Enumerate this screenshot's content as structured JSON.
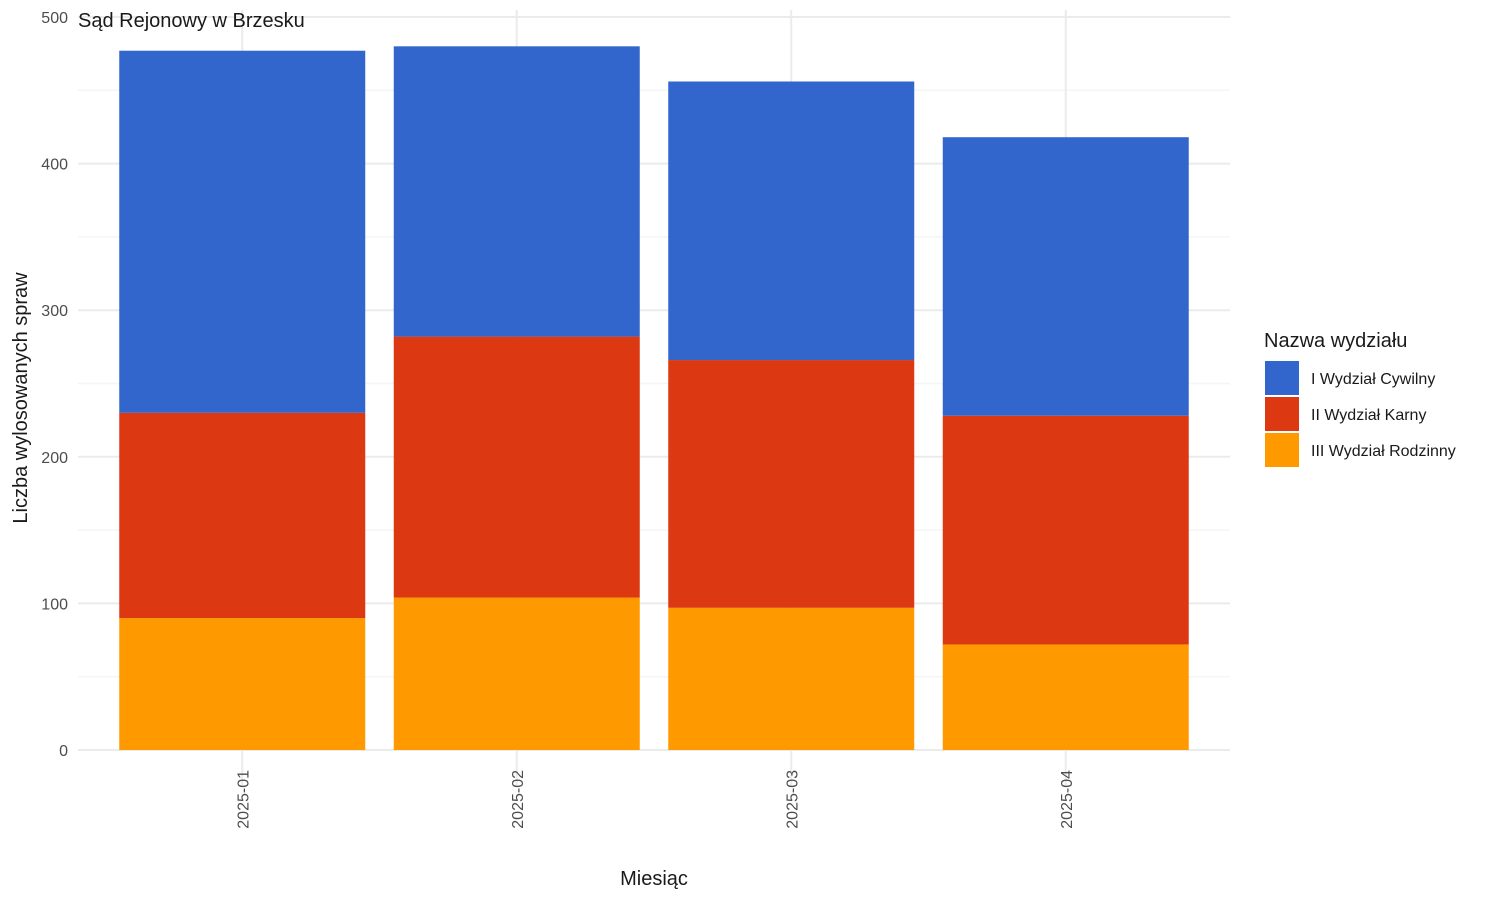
{
  "chart_data": {
    "type": "bar",
    "stacked": true,
    "title": "Sąd Rejonowy w Brzesku",
    "xlabel": "Miesiąc",
    "ylabel": "Liczba wylosowanych spraw",
    "categories": [
      "2025-01",
      "2025-02",
      "2025-03",
      "2025-04"
    ],
    "ylim": [
      0,
      500
    ],
    "yticks": [
      0,
      100,
      200,
      300,
      400,
      500
    ],
    "grid": true,
    "legend": {
      "title": "Nazwa wydziału",
      "position": "right"
    },
    "series": [
      {
        "name": "III Wydział Rodzinny",
        "color": "#FF9900",
        "values": [
          90,
          104,
          97,
          72
        ]
      },
      {
        "name": "II Wydział Karny",
        "color": "#DC3912",
        "values": [
          140,
          178,
          169,
          156
        ]
      },
      {
        "name": "I Wydział Cywilny",
        "color": "#3366CC",
        "values": [
          247,
          198,
          190,
          190
        ]
      }
    ],
    "legend_order": [
      "I Wydział Cywilny",
      "II Wydział Karny",
      "III Wydział Rodzinny"
    ]
  }
}
